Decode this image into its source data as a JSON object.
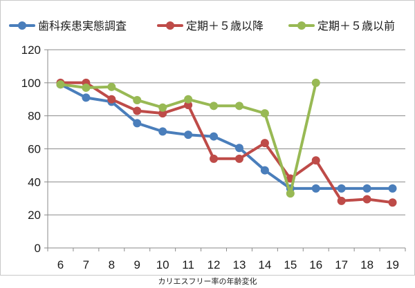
{
  "chart_data": {
    "type": "line",
    "title": "",
    "xlabel": "",
    "ylabel": "",
    "caption": "カリエスフリー率の年齢変化",
    "ylim": [
      0,
      120
    ],
    "y_ticks": [
      0,
      20,
      40,
      60,
      80,
      100,
      120
    ],
    "categories": [
      "6",
      "7",
      "8",
      "9",
      "10",
      "11",
      "12",
      "13",
      "14",
      "15",
      "16",
      "17",
      "18",
      "19"
    ],
    "grid": "horizontal",
    "legend_position": "top",
    "series": [
      {
        "name": "歯科疾患実態調査",
        "color": "#4a7ebb",
        "values": [
          99,
          91,
          88.5,
          75.5,
          70.5,
          68.5,
          67.5,
          60.5,
          47,
          36,
          36,
          36,
          36,
          36
        ]
      },
      {
        "name": "定期＋５歳以降",
        "color": "#be4b48",
        "values": [
          100,
          100,
          90,
          83,
          81.5,
          86.5,
          54,
          54,
          63.5,
          42,
          53,
          28.5,
          29.5,
          27.5
        ]
      },
      {
        "name": "定期＋５歳以前",
        "color": "#98b954",
        "values": [
          99,
          97,
          97.5,
          89.5,
          85,
          90,
          86,
          86,
          81.5,
          33,
          100,
          null,
          null,
          null
        ]
      }
    ]
  }
}
